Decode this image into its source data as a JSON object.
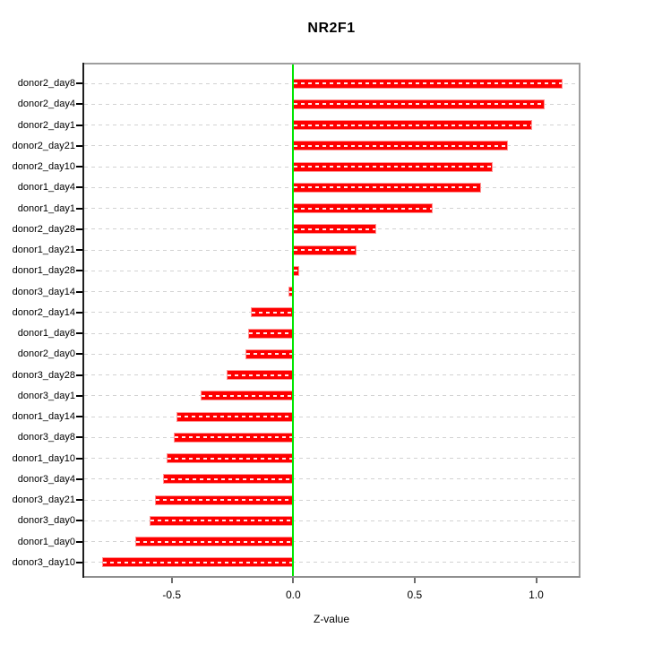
{
  "chart_data": {
    "type": "bar",
    "orientation": "horizontal",
    "title": "NR2F1",
    "xlabel": "Z-value",
    "categories": [
      "donor2_day8",
      "donor2_day4",
      "donor2_day1",
      "donor2_day21",
      "donor2_day10",
      "donor1_day4",
      "donor1_day1",
      "donor2_day28",
      "donor1_day21",
      "donor1_day28",
      "donor3_day14",
      "donor2_day14",
      "donor1_day8",
      "donor2_day0",
      "donor3_day28",
      "donor3_day1",
      "donor1_day14",
      "donor3_day8",
      "donor1_day10",
      "donor3_day4",
      "donor3_day21",
      "donor3_day0",
      "donor1_day0",
      "donor3_day10"
    ],
    "values": [
      1.11,
      1.035,
      0.985,
      0.885,
      0.82,
      0.775,
      0.575,
      0.34,
      0.26,
      0.025,
      -0.02,
      -0.175,
      -0.185,
      -0.195,
      -0.275,
      -0.38,
      -0.48,
      -0.49,
      -0.52,
      -0.535,
      -0.57,
      -0.59,
      -0.65,
      -0.785
    ],
    "x_ticks": [
      -0.5,
      0.0,
      0.5,
      1.0
    ],
    "x_tick_labels": [
      "-0.5",
      "0.0",
      "0.5",
      "1.0"
    ],
    "xlim": [
      -0.868,
      1.183
    ],
    "grid": true,
    "legend": "none",
    "colors": {
      "bar_fill": "#ff0000",
      "bar_border": "#ff9595",
      "zero_line": "#00e600",
      "gridline": "#d2d2d2",
      "frame": "#9e9e9e",
      "axis": "#000000"
    }
  }
}
